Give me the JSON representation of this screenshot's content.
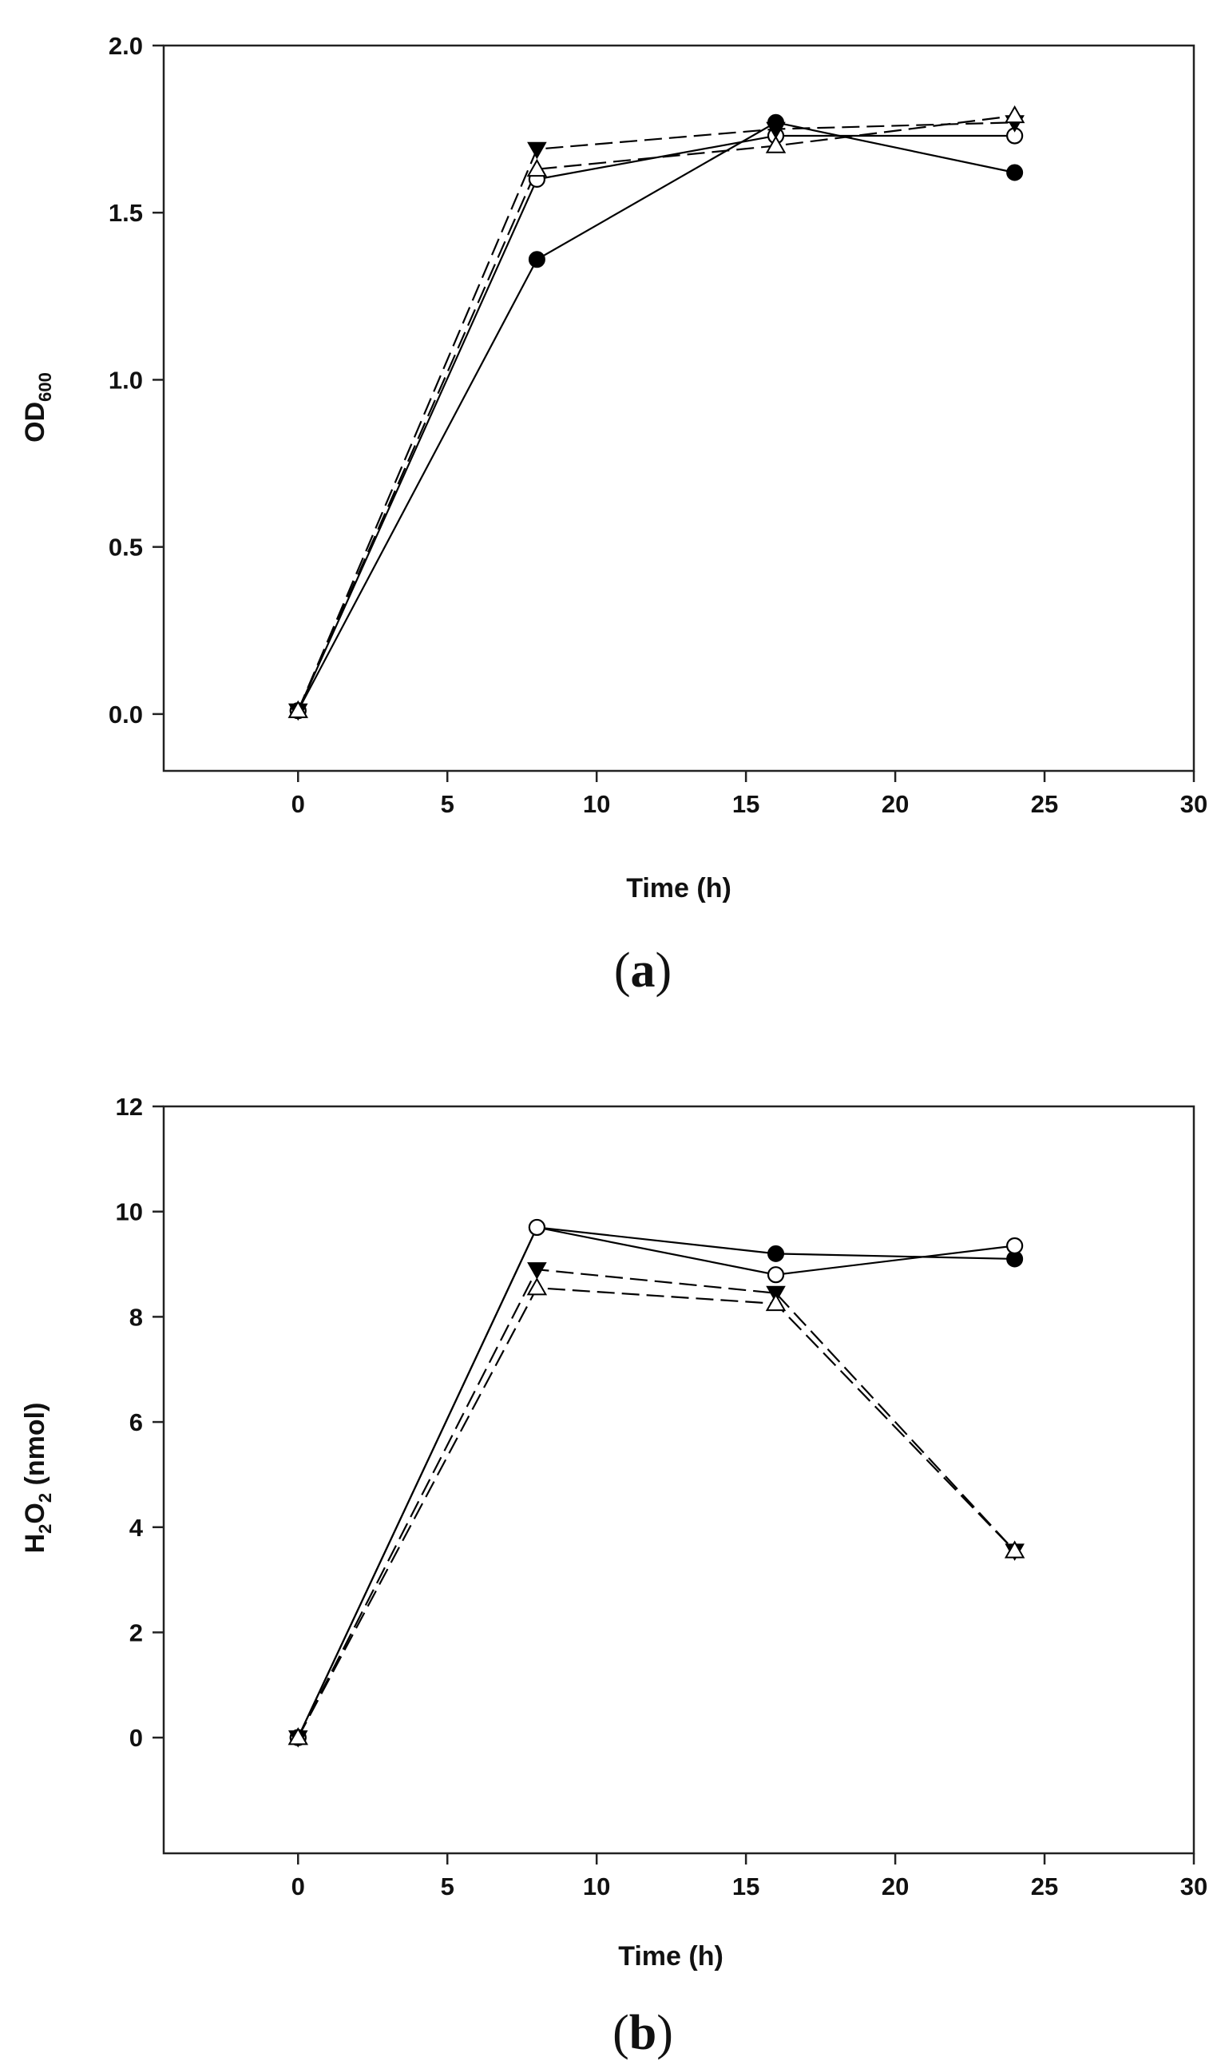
{
  "chart_data": [
    {
      "type": "line",
      "panel_label": "a",
      "xlabel": "Time (h)",
      "ylabel": {
        "main": "OD",
        "sub": "600"
      },
      "xlim": [
        -4.5,
        30
      ],
      "ylim": [
        -0.17,
        2.0
      ],
      "xticks": [
        "0",
        "5",
        "10",
        "15",
        "20",
        "25",
        "30"
      ],
      "yticks": [
        "0.0",
        "0.5",
        "1.0",
        "1.5",
        "2.0"
      ],
      "x": [
        0,
        8,
        16,
        24
      ],
      "series": [
        {
          "name": "series-1",
          "marker": "filled-circle",
          "line": "solid",
          "values": [
            0.01,
            1.36,
            1.77,
            1.62
          ]
        },
        {
          "name": "series-2",
          "marker": "open-circle",
          "line": "solid",
          "values": [
            0.01,
            1.6,
            1.73,
            1.73
          ]
        },
        {
          "name": "series-3",
          "marker": "filled-triangle-down",
          "line": "dashed",
          "values": [
            0.01,
            1.69,
            1.75,
            1.77
          ]
        },
        {
          "name": "series-4",
          "marker": "open-triangle-up",
          "line": "dashed",
          "values": [
            0.01,
            1.63,
            1.7,
            1.79
          ]
        }
      ]
    },
    {
      "type": "line",
      "panel_label": "b",
      "xlabel": "Time (h)",
      "ylabel": {
        "parts": [
          "H",
          "2",
          "O",
          "2",
          " (nmol)"
        ]
      },
      "xlim": [
        -4.5,
        30
      ],
      "ylim": [
        -2.2,
        12
      ],
      "xticks": [
        "0",
        "5",
        "10",
        "15",
        "20",
        "25",
        "30"
      ],
      "yticks": [
        "0",
        "2",
        "4",
        "6",
        "8",
        "10",
        "12"
      ],
      "x": [
        0,
        8,
        16,
        24
      ],
      "series": [
        {
          "name": "series-1",
          "marker": "filled-circle",
          "line": "solid",
          "values": [
            0.0,
            9.7,
            9.2,
            9.1
          ]
        },
        {
          "name": "series-2",
          "marker": "open-circle",
          "line": "solid",
          "values": [
            0.0,
            9.7,
            8.8,
            9.35
          ]
        },
        {
          "name": "series-3",
          "marker": "filled-triangle-down",
          "line": "dashed",
          "values": [
            0.0,
            8.9,
            8.45,
            3.55
          ]
        },
        {
          "name": "series-4",
          "marker": "open-triangle-up",
          "line": "dashed",
          "values": [
            0.0,
            8.55,
            8.25,
            3.55
          ]
        }
      ]
    }
  ]
}
